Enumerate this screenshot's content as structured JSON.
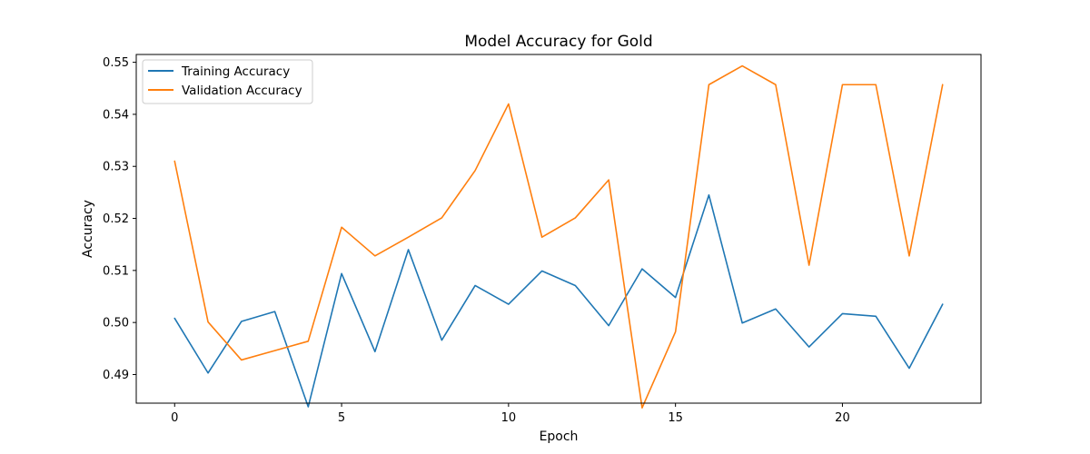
{
  "chart_data": {
    "type": "line",
    "title": "Model Accuracy for Gold",
    "xlabel": "Epoch",
    "ylabel": "Accuracy",
    "xlim": [
      -1.15,
      24.15
    ],
    "ylim": [
      0.4845,
      0.5515
    ],
    "xticks": [
      0,
      5,
      10,
      15,
      20
    ],
    "xtick_labels": [
      "0",
      "5",
      "10",
      "15",
      "20"
    ],
    "yticks": [
      0.49,
      0.5,
      0.51,
      0.52,
      0.53,
      0.54,
      0.55
    ],
    "ytick_labels": [
      "0.49",
      "0.50",
      "0.51",
      "0.52",
      "0.53",
      "0.54",
      "0.55"
    ],
    "grid": false,
    "legend_position": "top-left",
    "x": [
      0,
      1,
      2,
      3,
      4,
      5,
      6,
      7,
      8,
      9,
      10,
      11,
      12,
      13,
      14,
      15,
      16,
      17,
      18,
      19,
      20,
      21,
      22,
      23
    ],
    "series": [
      {
        "name": "Training Accuracy",
        "color": "#1f77b4",
        "values": [
          0.5008,
          0.4903,
          0.5002,
          0.5021,
          0.4838,
          0.5094,
          0.4944,
          0.514,
          0.4966,
          0.5071,
          0.5035,
          0.5099,
          0.5071,
          0.4994,
          0.5103,
          0.5048,
          0.5245,
          0.4999,
          0.5026,
          0.4953,
          0.5017,
          0.5012,
          0.4912,
          0.5035
        ]
      },
      {
        "name": "Validation Accuracy",
        "color": "#ff7f0e",
        "values": [
          0.531,
          0.5001,
          0.4928,
          0.4946,
          0.4964,
          0.5183,
          0.5128,
          0.5164,
          0.5201,
          0.5292,
          0.542,
          0.5164,
          0.5201,
          0.5274,
          0.4836,
          0.4982,
          0.5457,
          0.5493,
          0.5457,
          0.511,
          0.5457,
          0.5457,
          0.5128,
          0.5457
        ]
      }
    ]
  }
}
